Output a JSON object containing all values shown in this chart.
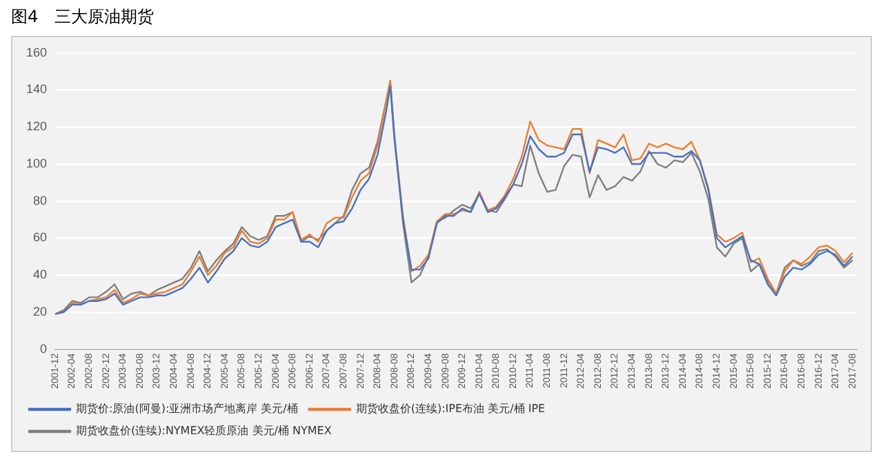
{
  "chart_data": {
    "type": "line",
    "title": "图4　三大原油期货",
    "x": [
      "2001-12",
      "2002-02",
      "2002-04",
      "2002-06",
      "2002-08",
      "2002-10",
      "2002-12",
      "2003-02",
      "2003-04",
      "2003-06",
      "2003-08",
      "2003-10",
      "2003-12",
      "2004-02",
      "2004-04",
      "2004-06",
      "2004-08",
      "2004-10",
      "2004-12",
      "2005-02",
      "2005-04",
      "2005-06",
      "2005-08",
      "2005-10",
      "2005-12",
      "2006-02",
      "2006-04",
      "2006-06",
      "2006-08",
      "2006-10",
      "2006-12",
      "2007-02",
      "2007-04",
      "2007-06",
      "2007-08",
      "2007-10",
      "2007-12",
      "2008-02",
      "2008-04",
      "2008-06",
      "2008-07",
      "2008-08",
      "2008-10",
      "2008-12",
      "2009-02",
      "2009-04",
      "2009-06",
      "2009-08",
      "2009-10",
      "2009-12",
      "2010-02",
      "2010-04",
      "2010-06",
      "2010-08",
      "2010-10",
      "2010-12",
      "2011-02",
      "2011-04",
      "2011-06",
      "2011-08",
      "2011-10",
      "2011-12",
      "2012-02",
      "2012-04",
      "2012-06",
      "2012-08",
      "2012-10",
      "2012-12",
      "2013-02",
      "2013-04",
      "2013-06",
      "2013-08",
      "2013-10",
      "2013-12",
      "2014-02",
      "2014-04",
      "2014-06",
      "2014-08",
      "2014-10",
      "2014-12",
      "2015-02",
      "2015-04",
      "2015-06",
      "2015-08",
      "2015-10",
      "2015-12",
      "2016-02",
      "2016-04",
      "2016-06",
      "2016-08",
      "2016-10",
      "2016-12",
      "2017-02",
      "2017-04",
      "2017-06",
      "2017-08"
    ],
    "series": [
      {
        "name": "期货价:原油(阿曼):亚洲市场产地离岸 美元/桶",
        "color": "#4472c4",
        "values": [
          19,
          20,
          24,
          24,
          26,
          26,
          27,
          30,
          24,
          26,
          28,
          28,
          29,
          29,
          31,
          33,
          38,
          44,
          36,
          42,
          49,
          53,
          60,
          56,
          55,
          58,
          66,
          68,
          70,
          58,
          58,
          55,
          64,
          68,
          69,
          76,
          86,
          92,
          105,
          128,
          142,
          113,
          70,
          43,
          43,
          49,
          68,
          72,
          72,
          76,
          74,
          84,
          74,
          76,
          82,
          89,
          100,
          115,
          108,
          104,
          104,
          106,
          116,
          116,
          96,
          109,
          108,
          106,
          109,
          100,
          100,
          106,
          106,
          106,
          104,
          104,
          107,
          102,
          86,
          60,
          55,
          58,
          61,
          48,
          46,
          35,
          29,
          39,
          44,
          43,
          46,
          51,
          53,
          51,
          45,
          50
        ]
      },
      {
        "name": "期货收盘价(连续):IPE布油 美元/桶 IPE",
        "color": "#ed7d31",
        "values": [
          19,
          20,
          25,
          24,
          26,
          27,
          28,
          32,
          25,
          27,
          30,
          29,
          30,
          31,
          33,
          35,
          42,
          50,
          40,
          45,
          52,
          55,
          64,
          58,
          57,
          60,
          70,
          70,
          74,
          59,
          62,
          58,
          68,
          71,
          71,
          82,
          91,
          95,
          110,
          133,
          145,
          114,
          72,
          42,
          45,
          51,
          69,
          73,
          73,
          75,
          74,
          85,
          75,
          77,
          83,
          92,
          104,
          123,
          113,
          110,
          109,
          108,
          119,
          119,
          95,
          113,
          111,
          109,
          116,
          102,
          103,
          111,
          109,
          111,
          109,
          108,
          112,
          102,
          87,
          62,
          58,
          60,
          63,
          47,
          49,
          38,
          30,
          42,
          48,
          46,
          50,
          55,
          56,
          53,
          47,
          52
        ]
      },
      {
        "name": "期货收盘价(连续):NYMEX轻质原油 美元/桶 NYMEX",
        "color": "#7f7f7f",
        "values": [
          19,
          21,
          26,
          25,
          28,
          28,
          31,
          35,
          27,
          30,
          31,
          29,
          32,
          34,
          36,
          38,
          44,
          53,
          42,
          48,
          53,
          57,
          66,
          61,
          59,
          61,
          72,
          72,
          74,
          58,
          61,
          59,
          64,
          68,
          72,
          86,
          95,
          98,
          112,
          134,
          145,
          115,
          68,
          36,
          40,
          50,
          69,
          71,
          75,
          78,
          76,
          84,
          75,
          74,
          81,
          89,
          88,
          110,
          95,
          85,
          86,
          99,
          105,
          104,
          82,
          94,
          86,
          88,
          93,
          91,
          96,
          107,
          100,
          98,
          102,
          101,
          106,
          96,
          81,
          55,
          50,
          57,
          60,
          42,
          46,
          37,
          30,
          44,
          48,
          45,
          47,
          53,
          54,
          50,
          44,
          48
        ]
      }
    ],
    "xlim": [
      "2001-12",
      "2017-09"
    ],
    "xticks": [
      "2001-12",
      "2002-04",
      "2002-08",
      "2002-12",
      "2003-04",
      "2003-08",
      "2003-12",
      "2004-04",
      "2004-08",
      "2004-12",
      "2005-04",
      "2005-08",
      "2005-12",
      "2006-04",
      "2006-08",
      "2006-12",
      "2007-04",
      "2007-08",
      "2007-12",
      "2008-04",
      "2008-08",
      "2008-12",
      "2009-04",
      "2009-08",
      "2009-12",
      "2010-04",
      "2010-08",
      "2010-12",
      "2011-04",
      "2011-08",
      "2011-12",
      "2012-04",
      "2012-08",
      "2012-12",
      "2013-04",
      "2013-08",
      "2013-12",
      "2014-04",
      "2014-08",
      "2014-12",
      "2015-04",
      "2015-08",
      "2015-12",
      "2016-04",
      "2016-08",
      "2016-12",
      "2017-04",
      "2017-08"
    ],
    "ylim": [
      0,
      160
    ],
    "yticks": [
      0,
      20,
      40,
      60,
      80,
      100,
      120,
      140,
      160
    ],
    "grid": "y",
    "legend": "bottom",
    "marker": "none",
    "line_style": "solid"
  }
}
